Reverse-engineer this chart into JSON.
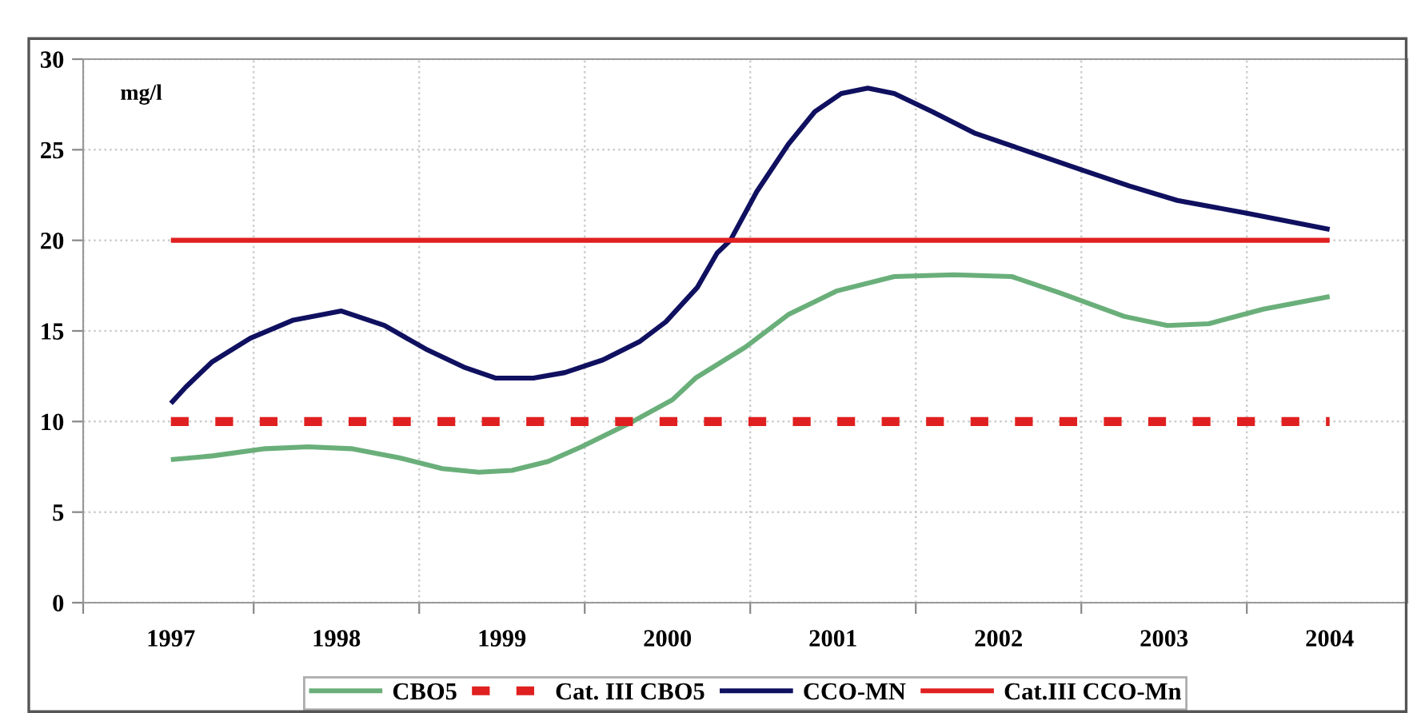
{
  "chart_data": {
    "type": "line",
    "ylabel": "mg/l",
    "xlim": [
      1996.47,
      2004.47
    ],
    "ylim": [
      0,
      30
    ],
    "yticks": [
      0,
      5,
      10,
      15,
      20,
      25,
      30
    ],
    "xticks": [
      {
        "value": 1996.47,
        "label": null
      },
      {
        "value": 1997,
        "label": "1997"
      },
      {
        "value": 1997.5,
        "label": null
      },
      {
        "value": 1998,
        "label": "1998"
      },
      {
        "value": 1998.5,
        "label": null
      },
      {
        "value": 1999,
        "label": "1999"
      },
      {
        "value": 1999.5,
        "label": null
      },
      {
        "value": 2000,
        "label": "2000"
      },
      {
        "value": 2000.5,
        "label": null
      },
      {
        "value": 2001,
        "label": "2001"
      },
      {
        "value": 2001.5,
        "label": null
      },
      {
        "value": 2002,
        "label": "2002"
      },
      {
        "value": 2002.5,
        "label": null
      },
      {
        "value": 2003,
        "label": "2003"
      },
      {
        "value": 2003.5,
        "label": null
      },
      {
        "value": 2004,
        "label": "2004"
      }
    ],
    "grid": true,
    "legend": "bottom",
    "marker": "none",
    "series": [
      {
        "name": "CBO5",
        "color": "#6aaf7a",
        "line_style": "solid",
        "x": [
          1997,
          1997.25,
          1997.57,
          1997.83,
          1998.09,
          1998.38,
          1998.64,
          1998.86,
          1999.06,
          1999.28,
          1999.48,
          1999.77,
          2000.03,
          2000.17,
          2000.47,
          2000.73,
          2001.02,
          2001.37,
          2001.73,
          2002.08,
          2002.37,
          2002.76,
          2003.02,
          2003.27,
          2003.6,
          2004
        ],
        "values": [
          7.9,
          8.1,
          8.5,
          8.6,
          8.5,
          8.0,
          7.4,
          7.2,
          7.3,
          7.8,
          8.6,
          9.9,
          11.2,
          12.4,
          14.1,
          15.9,
          17.2,
          18.0,
          18.1,
          18.0,
          17.1,
          15.8,
          15.3,
          15.4,
          16.2,
          16.9
        ]
      },
      {
        "name": "Cat. III CBO5",
        "color": "#e02020",
        "line_style": "dashed",
        "x": [
          1997,
          2004
        ],
        "values": [
          10,
          10
        ]
      },
      {
        "name": "CCO-MN",
        "color": "#101060",
        "line_style": "solid",
        "x": [
          1997,
          1997.09,
          1997.25,
          1997.48,
          1997.74,
          1998.03,
          1998.29,
          1998.54,
          1998.77,
          1998.96,
          1999.19,
          1999.38,
          1999.61,
          1999.83,
          1999.99,
          2000.18,
          2000.3,
          2000.38,
          2000.54,
          2000.73,
          2000.89,
          2001.05,
          2001.21,
          2001.37,
          2001.6,
          2001.86,
          2002.18,
          2002.5,
          2002.79,
          2003.08,
          2003.5,
          2004
        ],
        "values": [
          11.0,
          11.9,
          13.3,
          14.6,
          15.6,
          16.1,
          15.3,
          14.0,
          13.0,
          12.4,
          12.4,
          12.7,
          13.4,
          14.4,
          15.5,
          17.4,
          19.3,
          20.0,
          22.7,
          25.3,
          27.1,
          28.1,
          28.4,
          28.1,
          27.1,
          25.9,
          24.9,
          23.9,
          23.0,
          22.2,
          21.5,
          20.6
        ]
      },
      {
        "name": "Cat.III CCO-Mn",
        "color": "#e02020",
        "line_style": "solid",
        "x": [
          1997,
          2004
        ],
        "values": [
          20,
          20
        ]
      }
    ]
  }
}
